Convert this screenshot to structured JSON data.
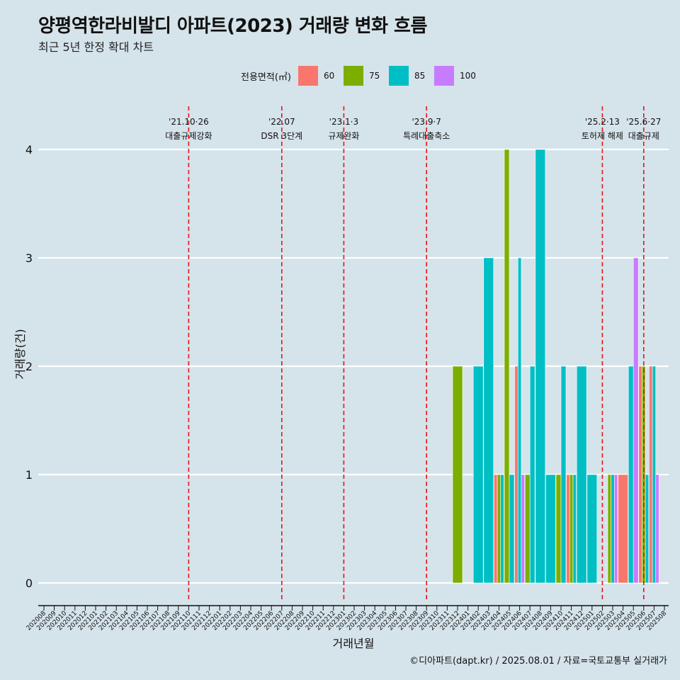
{
  "title": "양평역한라비발디 아파트(2023) 거래량 변화 흐름",
  "subtitle": "최근 5년 한정 확대 차트",
  "caption": "©디아파트(dapt.kr) / 2025.08.01 / 자료=국토교통부 실거래가",
  "legend": {
    "title": "전용면적(㎡)",
    "items": [
      {
        "label": "60",
        "color": "#f8766d"
      },
      {
        "label": "75",
        "color": "#7cae00"
      },
      {
        "label": "85",
        "color": "#00bfc4"
      },
      {
        "label": "100",
        "color": "#c77cff"
      }
    ]
  },
  "chart_data": {
    "type": "bar",
    "xlabel": "거래년월",
    "ylabel": "거래량(건)",
    "ylim": [
      0,
      4
    ],
    "yticks": [
      0,
      1,
      2,
      3,
      4
    ],
    "categories": [
      "202008",
      "202009",
      "202010",
      "202011",
      "202012",
      "202101",
      "202102",
      "202103",
      "202104",
      "202105",
      "202106",
      "202107",
      "202108",
      "202109",
      "202110",
      "202111",
      "202112",
      "202201",
      "202202",
      "202203",
      "202204",
      "202205",
      "202206",
      "202207",
      "202208",
      "202209",
      "202210",
      "202211",
      "202212",
      "202301",
      "202302",
      "202303",
      "202304",
      "202305",
      "202306",
      "202307",
      "202308",
      "202309",
      "202310",
      "202311",
      "202312",
      "202401",
      "202402",
      "202403",
      "202404",
      "202405",
      "202406",
      "202407",
      "202408",
      "202409",
      "202410",
      "202411",
      "202412",
      "202501",
      "202502",
      "202503",
      "202504",
      "202505",
      "202506",
      "202507",
      "202508"
    ],
    "series": [
      {
        "name": "60",
        "color": "#f8766d",
        "values": {
          "202404": 1,
          "202406": 2,
          "202411": 1,
          "202504": 1,
          "202506": 2,
          "202507": 2
        }
      },
      {
        "name": "75",
        "color": "#7cae00",
        "values": {
          "202312": 2,
          "202404": 1,
          "202405": 4,
          "202407": 1,
          "202410": 1,
          "202411": 1,
          "202503": 1,
          "202506": 2
        }
      },
      {
        "name": "85",
        "color": "#00bfc4",
        "values": {
          "202402": 2,
          "202403": 3,
          "202404": 1,
          "202405": 1,
          "202406": 3,
          "202407": 2,
          "202408": 4,
          "202409": 1,
          "202410": 2,
          "202411": 1,
          "202412": 2,
          "202501": 1,
          "202503": 1,
          "202505": 2,
          "202506": 1,
          "202507": 2
        }
      },
      {
        "name": "100",
        "color": "#c77cff",
        "values": {
          "202406": 1,
          "202503": 1,
          "202505": 3,
          "202507": 1
        }
      }
    ],
    "annotations": [
      {
        "at": "202110",
        "date": "'21.10·26",
        "label": "대출규제강화"
      },
      {
        "at": "202207",
        "date": "'22.07",
        "label": "DSR 3단계"
      },
      {
        "at": "202301",
        "date": "'23.1·3",
        "label": "규제완화"
      },
      {
        "at": "202309",
        "date": "'23.9·7",
        "label": "특례대출축소"
      },
      {
        "at": "202502",
        "date": "'25.2·13",
        "label": "토허제 해제"
      },
      {
        "at": "202506",
        "date": "'25.6·27",
        "label": "대출규제"
      }
    ]
  }
}
